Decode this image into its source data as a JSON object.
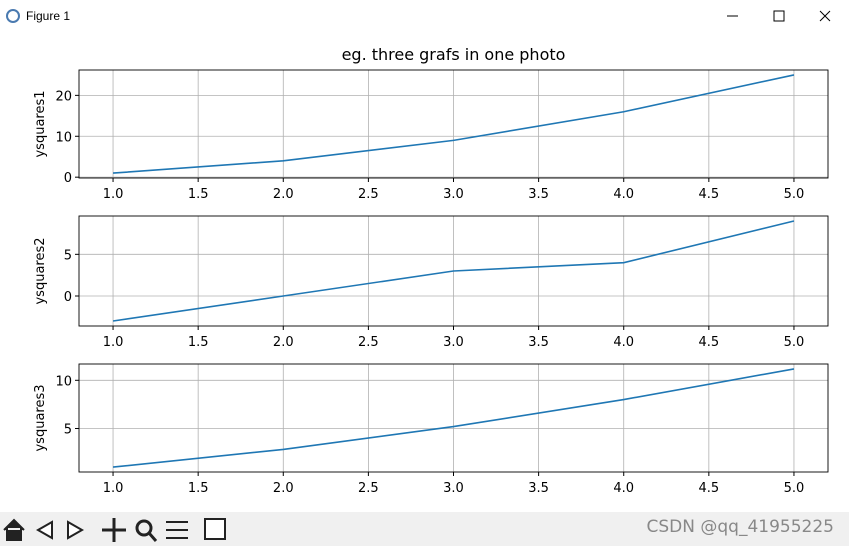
{
  "window_title": "Figure 1",
  "watermark": "CSDN @qq_41955225",
  "chart_data": [
    {
      "type": "line",
      "title": "eg. three grafs in one photo",
      "ylabel": "ysquares1",
      "x": [
        1,
        2,
        3,
        4,
        5
      ],
      "values": [
        1,
        4,
        9,
        16,
        25
      ],
      "color": "#1f77b4",
      "xlim": [
        0.8,
        5.2
      ],
      "ylim": [
        -0.2,
        26.2
      ],
      "xticks": [
        {
          "value": 1,
          "label": "1.0"
        },
        {
          "value": 1.5,
          "label": "1.5"
        },
        {
          "value": 2,
          "label": "2.0"
        },
        {
          "value": 2.5,
          "label": "2.5"
        },
        {
          "value": 3,
          "label": "3.0"
        },
        {
          "value": 3.5,
          "label": "3.5"
        },
        {
          "value": 4,
          "label": "4.0"
        },
        {
          "value": 4.5,
          "label": "4.5"
        },
        {
          "value": 5,
          "label": "5.0"
        }
      ],
      "yticks": [
        0,
        10,
        20
      ],
      "grid": true
    },
    {
      "type": "line",
      "ylabel": "ysquares2",
      "x": [
        1,
        2,
        3,
        4,
        5
      ],
      "values": [
        -3,
        0,
        3,
        4,
        9
      ],
      "color": "#1f77b4",
      "xlim": [
        0.8,
        5.2
      ],
      "ylim": [
        -3.6,
        9.6
      ],
      "xticks": [
        {
          "value": 1,
          "label": "1.0"
        },
        {
          "value": 1.5,
          "label": "1.5"
        },
        {
          "value": 2,
          "label": "2.0"
        },
        {
          "value": 2.5,
          "label": "2.5"
        },
        {
          "value": 3,
          "label": "3.0"
        },
        {
          "value": 3.5,
          "label": "3.5"
        },
        {
          "value": 4,
          "label": "4.0"
        },
        {
          "value": 4.5,
          "label": "4.5"
        },
        {
          "value": 5,
          "label": "5.0"
        }
      ],
      "yticks": [
        0,
        5
      ],
      "grid": true
    },
    {
      "type": "line",
      "ylabel": "ysquares3",
      "x": [
        1,
        2,
        3,
        4,
        5
      ],
      "values": [
        1,
        2.83,
        5.2,
        8,
        11.18
      ],
      "color": "#1f77b4",
      "xlim": [
        0.8,
        5.2
      ],
      "ylim": [
        0.49,
        11.69
      ],
      "xticks": [
        {
          "value": 1,
          "label": "1.0"
        },
        {
          "value": 1.5,
          "label": "1.5"
        },
        {
          "value": 2,
          "label": "2.0"
        },
        {
          "value": 2.5,
          "label": "2.5"
        },
        {
          "value": 3,
          "label": "3.0"
        },
        {
          "value": 3.5,
          "label": "3.5"
        },
        {
          "value": 4,
          "label": "4.0"
        },
        {
          "value": 4.5,
          "label": "4.5"
        },
        {
          "value": 5,
          "label": "5.0"
        }
      ],
      "yticks": [
        5,
        10
      ],
      "grid": true
    }
  ]
}
